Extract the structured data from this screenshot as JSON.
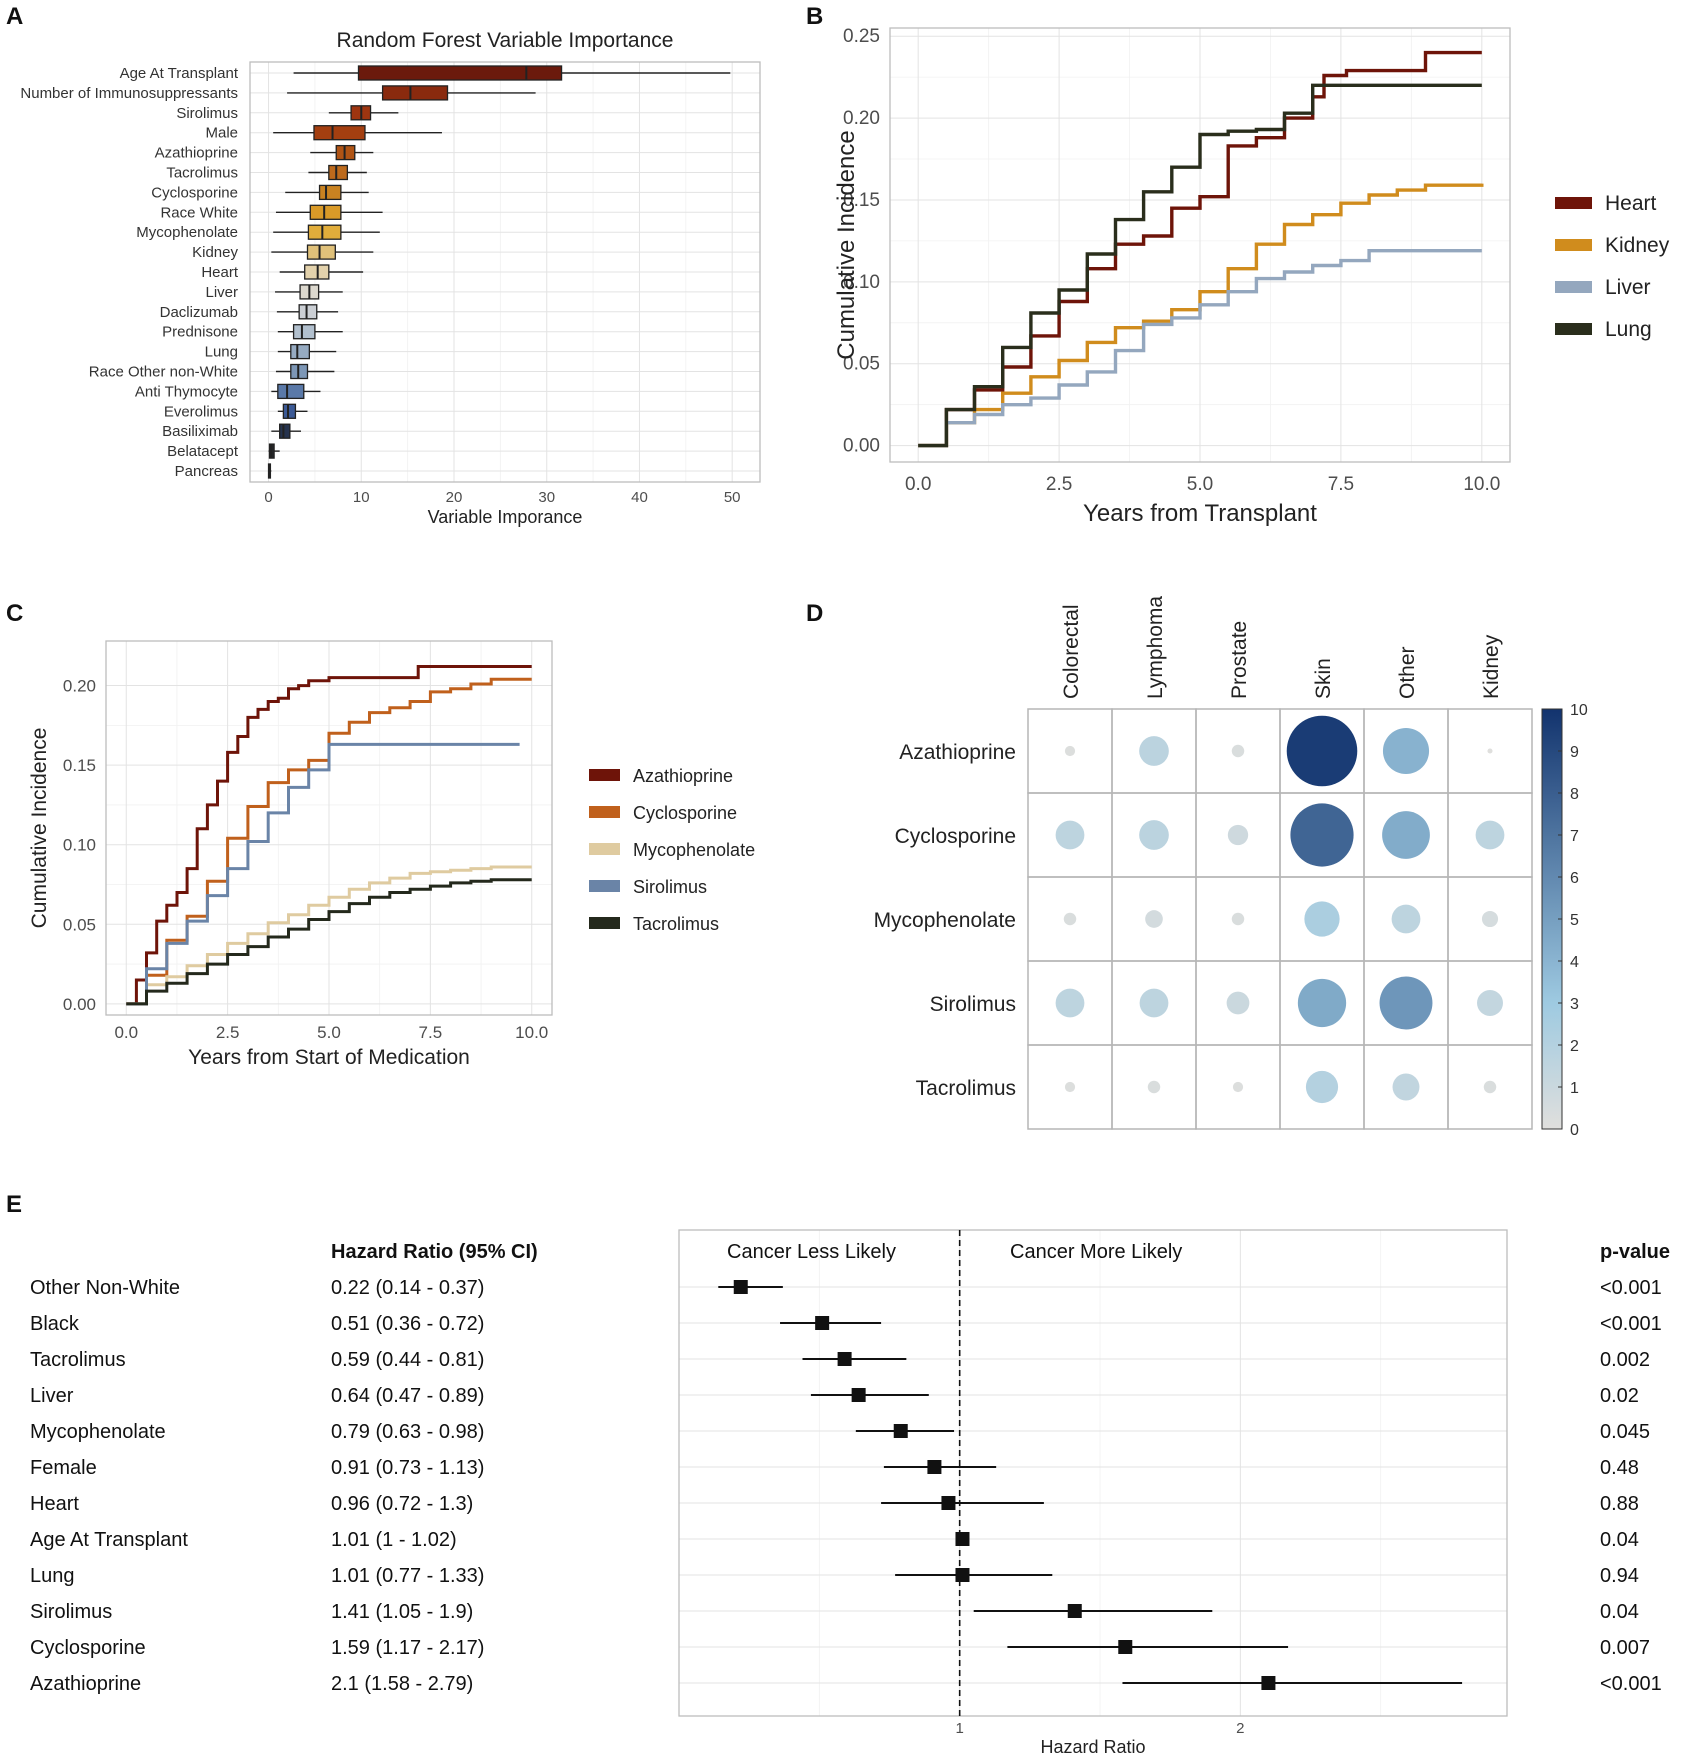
{
  "panels": {
    "A": "A",
    "B": "B",
    "C": "C",
    "D": "D",
    "E": "E"
  },
  "chart_data": [
    {
      "id": "A",
      "type": "boxplot",
      "title": "Random Forest Variable Importance",
      "xlabel": "Variable Imporance",
      "ylabel": "",
      "xlim": [
        -2,
        53
      ],
      "xticks": [
        "0",
        "10",
        "20",
        "30",
        "40",
        "50"
      ],
      "xtick_values": [
        0,
        10,
        20,
        30,
        40,
        50
      ],
      "variables": [
        {
          "name": "Age At Transplant",
          "min": 2.7,
          "q1": 9.7,
          "median": 27.8,
          "q3": 31.6,
          "max": 49.8,
          "color": "#6b1a0c"
        },
        {
          "name": "Number of Immunosuppressants",
          "min": 2.0,
          "q1": 12.3,
          "median": 15.3,
          "q3": 19.3,
          "max": 28.8,
          "color": "#8a2a0e"
        },
        {
          "name": "Sirolimus",
          "min": 6.5,
          "q1": 8.9,
          "median": 10.0,
          "q3": 11.0,
          "max": 14.0,
          "color": "#9e3510"
        },
        {
          "name": "Male",
          "min": 0.5,
          "q1": 4.9,
          "median": 6.9,
          "q3": 10.4,
          "max": 18.7,
          "color": "#a43f10"
        },
        {
          "name": "Azathioprine",
          "min": 4.5,
          "q1": 7.3,
          "median": 8.2,
          "q3": 9.3,
          "max": 11.3,
          "color": "#b05415"
        },
        {
          "name": "Tacrolimus",
          "min": 4.3,
          "q1": 6.5,
          "median": 7.3,
          "q3": 8.5,
          "max": 10.6,
          "color": "#bd6a1c"
        },
        {
          "name": "Cyclosporine",
          "min": 1.8,
          "q1": 5.5,
          "median": 6.2,
          "q3": 7.8,
          "max": 10.8,
          "color": "#c98221"
        },
        {
          "name": "Race White",
          "min": 0.8,
          "q1": 4.5,
          "median": 6.0,
          "q3": 7.8,
          "max": 12.3,
          "color": "#d99a28"
        },
        {
          "name": "Mycophenolate",
          "min": 0.5,
          "q1": 4.3,
          "median": 5.8,
          "q3": 7.8,
          "max": 12.0,
          "color": "#e1ad3b"
        },
        {
          "name": "Kidney",
          "min": 0.3,
          "q1": 4.2,
          "median": 5.5,
          "q3": 7.2,
          "max": 11.3,
          "color": "#e0c17a"
        },
        {
          "name": "Heart",
          "min": 1.2,
          "q1": 3.9,
          "median": 5.3,
          "q3": 6.5,
          "max": 10.2,
          "color": "#e3d2ac"
        },
        {
          "name": "Liver",
          "min": 0.7,
          "q1": 3.4,
          "median": 4.4,
          "q3": 5.4,
          "max": 8.0,
          "color": "#dcd8ce"
        },
        {
          "name": "Daclizumab",
          "min": 0.9,
          "q1": 3.3,
          "median": 4.1,
          "q3": 5.2,
          "max": 7.5,
          "color": "#cbcfd4"
        },
        {
          "name": "Prednisone",
          "min": 1.0,
          "q1": 2.7,
          "median": 3.6,
          "q3": 5.0,
          "max": 8.0,
          "color": "#b2c0ce"
        },
        {
          "name": "Lung",
          "min": 1.0,
          "q1": 2.4,
          "median": 3.1,
          "q3": 4.4,
          "max": 7.3,
          "color": "#96abc2"
        },
        {
          "name": "Race Other non-White",
          "min": 0.8,
          "q1": 2.4,
          "median": 3.2,
          "q3": 4.2,
          "max": 7.1,
          "color": "#7d97b6"
        },
        {
          "name": "Anti Thymocyte",
          "min": 0.3,
          "q1": 1.0,
          "median": 2.0,
          "q3": 3.8,
          "max": 5.6,
          "color": "#5a79a8"
        },
        {
          "name": "Everolimus",
          "min": 1.0,
          "q1": 1.6,
          "median": 2.1,
          "q3": 2.9,
          "max": 4.2,
          "color": "#3c5a96"
        },
        {
          "name": "Basiliximab",
          "min": 0.3,
          "q1": 1.2,
          "median": 1.6,
          "q3": 2.3,
          "max": 3.5,
          "color": "#26334e"
        },
        {
          "name": "Belatacept",
          "min": 0.0,
          "q1": 0.1,
          "median": 0.3,
          "q3": 0.6,
          "max": 1.2,
          "color": "#26282c"
        },
        {
          "name": "Pancreas",
          "min": 0.0,
          "q1": 0.0,
          "median": 0.1,
          "q3": 0.2,
          "max": 0.3,
          "color": "#1f1f1f"
        }
      ]
    },
    {
      "id": "B",
      "type": "line",
      "title": "",
      "xlabel": "Years from Transplant",
      "ylabel": "Cumulative Incidence",
      "xlim": [
        -0.5,
        10.5
      ],
      "ylim": [
        -0.01,
        0.255
      ],
      "xticks": [
        "0.0",
        "2.5",
        "5.0",
        "7.5",
        "10.0"
      ],
      "xtick_values": [
        0,
        2.5,
        5,
        7.5,
        10
      ],
      "yticks": [
        "0.00",
        "0.05",
        "0.10",
        "0.15",
        "0.20",
        "0.25"
      ],
      "ytick_values": [
        0,
        0.05,
        0.1,
        0.15,
        0.2,
        0.25
      ],
      "series": [
        {
          "name": "Heart",
          "color": "#6e1409",
          "x": [
            0,
            0.5,
            1.0,
            1.5,
            2.0,
            2.5,
            3.0,
            3.5,
            4.0,
            4.5,
            5.0,
            5.5,
            6.0,
            6.5,
            7.0,
            7.2,
            7.6,
            8.0,
            8.8,
            9.0,
            10.0
          ],
          "y": [
            0,
            0.022,
            0.034,
            0.048,
            0.067,
            0.088,
            0.108,
            0.123,
            0.128,
            0.145,
            0.152,
            0.183,
            0.188,
            0.2,
            0.213,
            0.226,
            0.229,
            0.229,
            0.229,
            0.24,
            0.24
          ]
        },
        {
          "name": "Kidney",
          "color": "#d08c1d",
          "x": [
            0,
            0.5,
            1.0,
            1.5,
            2.0,
            2.5,
            3.0,
            3.5,
            4.0,
            4.5,
            5.0,
            5.5,
            6.0,
            6.5,
            7.0,
            7.5,
            8.0,
            8.5,
            9.0,
            10.0
          ],
          "y": [
            0,
            0.014,
            0.022,
            0.032,
            0.042,
            0.052,
            0.063,
            0.072,
            0.076,
            0.083,
            0.094,
            0.108,
            0.123,
            0.135,
            0.141,
            0.148,
            0.153,
            0.156,
            0.159,
            0.16
          ]
        },
        {
          "name": "Liver",
          "color": "#94a7be",
          "x": [
            0,
            0.5,
            1.0,
            1.5,
            2.0,
            2.5,
            3.0,
            3.5,
            4.0,
            4.5,
            5.0,
            5.5,
            6.0,
            6.5,
            7.0,
            7.5,
            8.0,
            10.0
          ],
          "y": [
            0,
            0.014,
            0.019,
            0.025,
            0.029,
            0.037,
            0.045,
            0.058,
            0.074,
            0.078,
            0.086,
            0.094,
            0.102,
            0.106,
            0.11,
            0.113,
            0.119,
            0.119
          ]
        },
        {
          "name": "Lung",
          "color": "#2a2e1c",
          "x": [
            0,
            0.5,
            1.0,
            1.5,
            2.0,
            2.5,
            3.0,
            3.5,
            4.0,
            4.5,
            5.0,
            5.5,
            6.0,
            6.5,
            7.0,
            7.5,
            8.0,
            10.0
          ],
          "y": [
            0,
            0.022,
            0.036,
            0.06,
            0.081,
            0.095,
            0.117,
            0.138,
            0.155,
            0.17,
            0.19,
            0.192,
            0.193,
            0.203,
            0.22,
            0.22,
            0.22,
            0.22
          ]
        }
      ]
    },
    {
      "id": "C",
      "type": "line",
      "title": "",
      "xlabel": "Years from Start of Medication",
      "ylabel": "Cumulative Incidence",
      "xlim": [
        -0.5,
        10.5
      ],
      "ylim": [
        -0.007,
        0.228
      ],
      "xticks": [
        "0.0",
        "2.5",
        "5.0",
        "7.5",
        "10.0"
      ],
      "xtick_values": [
        0,
        2.5,
        5,
        7.5,
        10
      ],
      "yticks": [
        "0.00",
        "0.05",
        "0.10",
        "0.15",
        "0.20"
      ],
      "ytick_values": [
        0,
        0.05,
        0.1,
        0.15,
        0.2
      ],
      "series": [
        {
          "name": "Azathioprine",
          "color": "#6e1409",
          "x": [
            0,
            0.25,
            0.5,
            0.75,
            1.0,
            1.25,
            1.5,
            1.75,
            2.0,
            2.25,
            2.5,
            2.75,
            3.0,
            3.25,
            3.5,
            3.75,
            4.0,
            4.25,
            4.5,
            5.0,
            5.5,
            6.0,
            6.5,
            7.0,
            7.2,
            8.0,
            9.0,
            10.0
          ],
          "y": [
            0,
            0.015,
            0.032,
            0.052,
            0.062,
            0.07,
            0.085,
            0.11,
            0.125,
            0.14,
            0.158,
            0.168,
            0.18,
            0.185,
            0.19,
            0.192,
            0.198,
            0.2,
            0.203,
            0.205,
            0.205,
            0.205,
            0.205,
            0.205,
            0.212,
            0.212,
            0.212,
            0.212
          ]
        },
        {
          "name": "Cyclosporine",
          "color": "#c0601c",
          "x": [
            0,
            0.5,
            1.0,
            1.5,
            2.0,
            2.5,
            3.0,
            3.5,
            4.0,
            4.5,
            5.0,
            5.5,
            6.0,
            6.5,
            7.0,
            7.5,
            8.0,
            8.5,
            9.0,
            10.0
          ],
          "y": [
            0,
            0.018,
            0.04,
            0.055,
            0.077,
            0.104,
            0.124,
            0.139,
            0.147,
            0.153,
            0.17,
            0.177,
            0.183,
            0.186,
            0.19,
            0.196,
            0.198,
            0.201,
            0.204,
            0.204
          ]
        },
        {
          "name": "Mycophenolate",
          "color": "#dfcba0",
          "x": [
            0,
            0.5,
            1.0,
            1.5,
            2.0,
            2.5,
            3.0,
            3.5,
            4.0,
            4.5,
            5.0,
            5.5,
            6.0,
            6.5,
            7.0,
            7.5,
            8.0,
            8.5,
            9.0,
            10.0
          ],
          "y": [
            0,
            0.012,
            0.017,
            0.024,
            0.031,
            0.038,
            0.044,
            0.051,
            0.056,
            0.062,
            0.067,
            0.072,
            0.076,
            0.079,
            0.082,
            0.083,
            0.084,
            0.085,
            0.086,
            0.086
          ]
        },
        {
          "name": "Sirolimus",
          "color": "#6a84a7",
          "x": [
            0,
            0.5,
            1.0,
            1.5,
            2.0,
            2.5,
            3.0,
            3.5,
            4.0,
            4.5,
            5.0,
            5.5,
            6.0,
            7.0,
            8.0,
            9.0,
            9.7
          ],
          "y": [
            0,
            0.022,
            0.038,
            0.052,
            0.068,
            0.085,
            0.102,
            0.12,
            0.136,
            0.147,
            0.163,
            0.163,
            0.163,
            0.163,
            0.163,
            0.163,
            0.163
          ]
        },
        {
          "name": "Tacrolimus",
          "color": "#24291c",
          "x": [
            0,
            0.5,
            1.0,
            1.5,
            2.0,
            2.5,
            3.0,
            3.5,
            4.0,
            4.5,
            5.0,
            5.5,
            6.0,
            6.5,
            7.0,
            7.5,
            8.0,
            8.5,
            9.0,
            10.0
          ],
          "y": [
            0,
            0.008,
            0.013,
            0.019,
            0.025,
            0.031,
            0.036,
            0.042,
            0.047,
            0.053,
            0.058,
            0.063,
            0.067,
            0.07,
            0.072,
            0.074,
            0.076,
            0.077,
            0.078,
            0.078
          ]
        }
      ]
    },
    {
      "id": "D",
      "type": "bubble-matrix",
      "title": "",
      "columns": [
        "Colorectal",
        "Lymphoma",
        "Prostate",
        "Skin",
        "Other",
        "Kidney"
      ],
      "rows": [
        "Azathioprine",
        "Cyclosporine",
        "Mycophenolate",
        "Sirolimus",
        "Tacrolimus"
      ],
      "values": [
        [
          0.2,
          1.7,
          0.3,
          9.6,
          4.1,
          0.05
        ],
        [
          1.6,
          1.7,
          0.8,
          7.7,
          4.4,
          1.6
        ],
        [
          0.3,
          0.6,
          0.3,
          2.4,
          1.6,
          0.5
        ],
        [
          1.6,
          1.6,
          1.0,
          4.5,
          5.4,
          1.3
        ],
        [
          0.2,
          0.3,
          0.2,
          2.0,
          1.4,
          0.3
        ]
      ],
      "colorbar": {
        "min": 0,
        "max": 10,
        "ticks": [
          "0",
          "1",
          "2",
          "3",
          "4",
          "5",
          "6",
          "7",
          "8",
          "9",
          "10"
        ],
        "low_color": "#e0dfdd",
        "high_color": "#12336e"
      }
    },
    {
      "id": "E",
      "type": "forest",
      "title": "",
      "xlabel": "Hazard Ratio",
      "xlim": [
        0,
        2.95
      ],
      "xticks": [
        "1",
        "2"
      ],
      "xtick_values": [
        1,
        2
      ],
      "reference_line": 1,
      "annotation_left": "Cancer Less Likely",
      "annotation_right": "Cancer More Likely",
      "col_hr_header": "Hazard Ratio (95% CI)",
      "col_p_header": "p-value",
      "rows": [
        {
          "label": "Other Non-White",
          "hr": 0.22,
          "lo": 0.14,
          "hi": 0.37,
          "text": "0.22 (0.14 - 0.37)",
          "p": "<0.001"
        },
        {
          "label": "Black",
          "hr": 0.51,
          "lo": 0.36,
          "hi": 0.72,
          "text": "0.51 (0.36 - 0.72)",
          "p": "<0.001"
        },
        {
          "label": "Tacrolimus",
          "hr": 0.59,
          "lo": 0.44,
          "hi": 0.81,
          "text": "0.59 (0.44 - 0.81)",
          "p": "0.002"
        },
        {
          "label": "Liver",
          "hr": 0.64,
          "lo": 0.47,
          "hi": 0.89,
          "text": "0.64 (0.47 - 0.89)",
          "p": "0.02"
        },
        {
          "label": "Mycophenolate",
          "hr": 0.79,
          "lo": 0.63,
          "hi": 0.98,
          "text": "0.79 (0.63 - 0.98)",
          "p": "0.045"
        },
        {
          "label": "Female",
          "hr": 0.91,
          "lo": 0.73,
          "hi": 1.13,
          "text": "0.91 (0.73 - 1.13)",
          "p": "0.48"
        },
        {
          "label": "Heart",
          "hr": 0.96,
          "lo": 0.72,
          "hi": 1.3,
          "text": "0.96 (0.72 - 1.3)",
          "p": "0.88"
        },
        {
          "label": "Age At Transplant",
          "hr": 1.01,
          "lo": 1.0,
          "hi": 1.02,
          "text": "1.01 (1 - 1.02)",
          "p": "0.04"
        },
        {
          "label": "Lung",
          "hr": 1.01,
          "lo": 0.77,
          "hi": 1.33,
          "text": "1.01 (0.77 - 1.33)",
          "p": "0.94"
        },
        {
          "label": "Sirolimus",
          "hr": 1.41,
          "lo": 1.05,
          "hi": 1.9,
          "text": "1.41 (1.05 - 1.9)",
          "p": "0.04"
        },
        {
          "label": "Cyclosporine",
          "hr": 1.59,
          "lo": 1.17,
          "hi": 2.17,
          "text": "1.59 (1.17 - 2.17)",
          "p": "0.007"
        },
        {
          "label": "Azathioprine",
          "hr": 2.1,
          "lo": 1.58,
          "hi": 2.79,
          "text": "2.1 (1.58 - 2.79)",
          "p": "<0.001"
        }
      ]
    }
  ]
}
